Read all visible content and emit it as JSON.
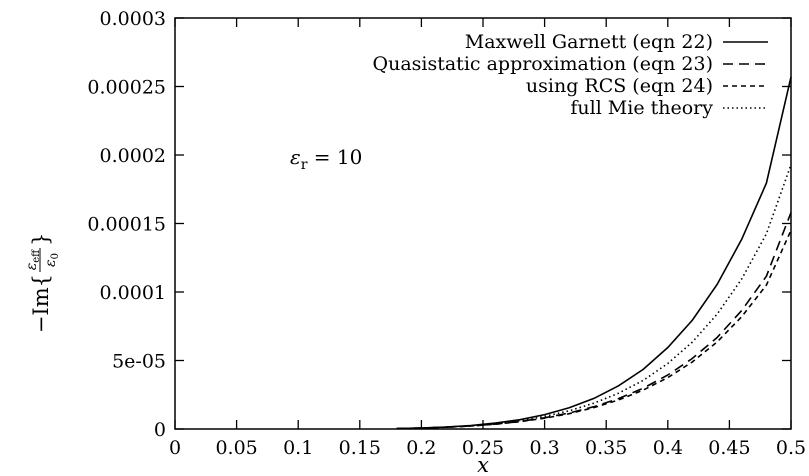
{
  "chart_data": {
    "type": "line",
    "xlabel": "x",
    "ylabel": {
      "prefix": "−Im{",
      "numerator": "ε",
      "numerator_sub": "eff",
      "denominator": "ε",
      "denominator_sub": "0",
      "suffix": "}"
    },
    "annotation": {
      "symbol": "ε",
      "subscript": "r",
      "value": " = 10"
    },
    "xlim": [
      0,
      0.5
    ],
    "ylim": [
      0,
      0.0003
    ],
    "x_ticks": [
      "0",
      "0.05",
      "0.1",
      "0.15",
      "0.2",
      "0.25",
      "0.3",
      "0.35",
      "0.4",
      "0.45",
      "0.5"
    ],
    "y_ticks": [
      "0",
      "5e-05",
      "0.0001",
      "0.00015",
      "0.0002",
      "0.00025",
      "0.0003"
    ],
    "legend_position": "top-right",
    "grid": false,
    "x": [
      0.18,
      0.2,
      0.22,
      0.24,
      0.26,
      0.28,
      0.3,
      0.32,
      0.34,
      0.36,
      0.38,
      0.4,
      0.42,
      0.44,
      0.46,
      0.48,
      0.5
    ],
    "series": [
      {
        "name": "Maxwell Garnett (eqn 22)",
        "dash": "solid",
        "values": [
          3e-07,
          7e-07,
          1.4e-06,
          2.5e-06,
          4.3e-06,
          6.8e-06,
          1.05e-05,
          1.55e-05,
          2.23e-05,
          3.15e-05,
          4.35e-05,
          5.95e-05,
          7.95e-05,
          0.0001055,
          0.0001385,
          0.0001795,
          0.000257
        ]
      },
      {
        "name": "Quasistatic approximation (eqn 23)",
        "dash": "long",
        "values": [
          3e-07,
          7e-07,
          1.3e-06,
          2.2e-06,
          3.6e-06,
          5.5e-06,
          8.2e-06,
          1.17e-05,
          1.63e-05,
          2.22e-05,
          2.98e-05,
          3.94e-05,
          5.15e-05,
          6.68e-05,
          8.65e-05,
          0.0001115,
          0.000158
        ]
      },
      {
        "name": "using RCS (eqn 24)",
        "dash": "short",
        "values": [
          3e-07,
          7e-07,
          1.3e-06,
          2.2e-06,
          3.5e-06,
          5.3e-06,
          7.9e-06,
          1.12e-05,
          1.56e-05,
          2.12e-05,
          2.84e-05,
          3.75e-05,
          4.9e-05,
          6.35e-05,
          8.2e-05,
          0.000105,
          0.000145
        ]
      },
      {
        "name": "full Mie theory",
        "dash": "dotted",
        "values": [
          3e-07,
          7e-07,
          1.3e-06,
          2.3e-06,
          3.9e-06,
          6.1e-06,
          9.2e-06,
          1.33e-05,
          1.88e-05,
          2.61e-05,
          3.55e-05,
          4.78e-05,
          6.35e-05,
          8.38e-05,
          0.0001095,
          0.0001425,
          0.000193
        ]
      }
    ]
  }
}
